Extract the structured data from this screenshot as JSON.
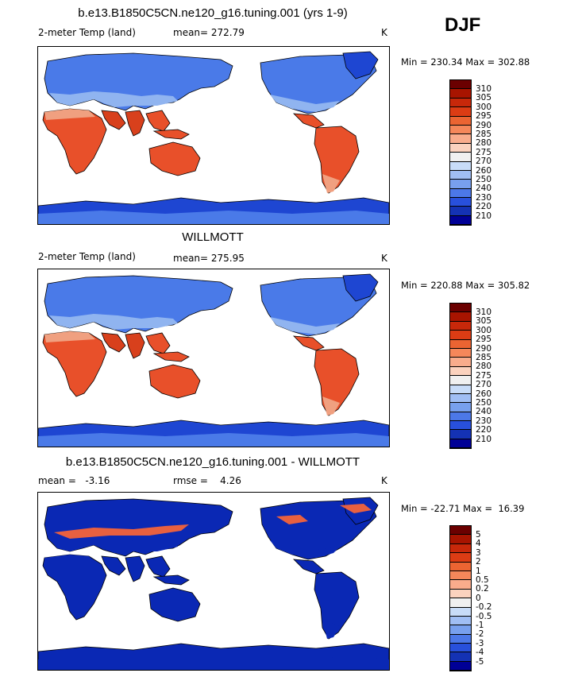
{
  "season": "DJF",
  "panels": [
    {
      "title": "b.e13.B1850C5CN.ne120_g16.tuning.001 (yrs 1-9)",
      "variable": "2-meter Temp (land)",
      "stat": "mean= 272.79",
      "units": "K",
      "minmax": "Min = 230.34 Max = 302.88",
      "palette": "abs"
    },
    {
      "title": "WILLMOTT",
      "variable": "2-meter Temp (land)",
      "stat": "mean= 275.95",
      "units": "K",
      "minmax": "Min = 220.88 Max = 305.82",
      "palette": "abs"
    },
    {
      "title": "b.e13.B1850C5CN.ne120_g16.tuning.001 - WILLMOTT",
      "stat_mean": "mean =   -3.16",
      "stat_rmse": "rmse =    4.26",
      "units": "K",
      "minmax": "Min = -22.71 Max =  16.39",
      "palette": "diff"
    }
  ],
  "colorbars": {
    "abs": {
      "labels": [
        "310",
        "305",
        "300",
        "295",
        "290",
        "285",
        "280",
        "275",
        "270",
        "260",
        "250",
        "240",
        "230",
        "220",
        "210"
      ],
      "colors": [
        "#6b0000",
        "#a81400",
        "#c8280a",
        "#dc3c14",
        "#eb6432",
        "#f5875a",
        "#f9ac8c",
        "#fbd2be",
        "#f0f0f0",
        "#c8dcf8",
        "#a0bef4",
        "#78a0ee",
        "#4c78e8",
        "#2850dc",
        "#1432b4",
        "#000096"
      ]
    },
    "diff": {
      "labels": [
        "5",
        "4",
        "3",
        "2",
        "1",
        "0.5",
        "0.2",
        "0",
        "-0.2",
        "-0.5",
        "-1",
        "-2",
        "-3",
        "-4",
        "-5"
      ],
      "colors": [
        "#6b0000",
        "#a81400",
        "#c8280a",
        "#dc3c14",
        "#eb6432",
        "#f5875a",
        "#f9ac8c",
        "#fbd2be",
        "#f0f0f0",
        "#c8dcf8",
        "#a0bef4",
        "#78a0ee",
        "#4c78e8",
        "#2850dc",
        "#1432b4",
        "#000096"
      ]
    }
  },
  "map_colors": {
    "ocean": "#ffffff",
    "warm": "#e8502a",
    "hot": "#d8401c",
    "mid": "#f0a080",
    "cold": "#4a7ae8",
    "cool": "#90b4f0",
    "polar": "#1e46d2",
    "diff_bg": "#0a28b4",
    "diff_hot": "#e86040"
  }
}
